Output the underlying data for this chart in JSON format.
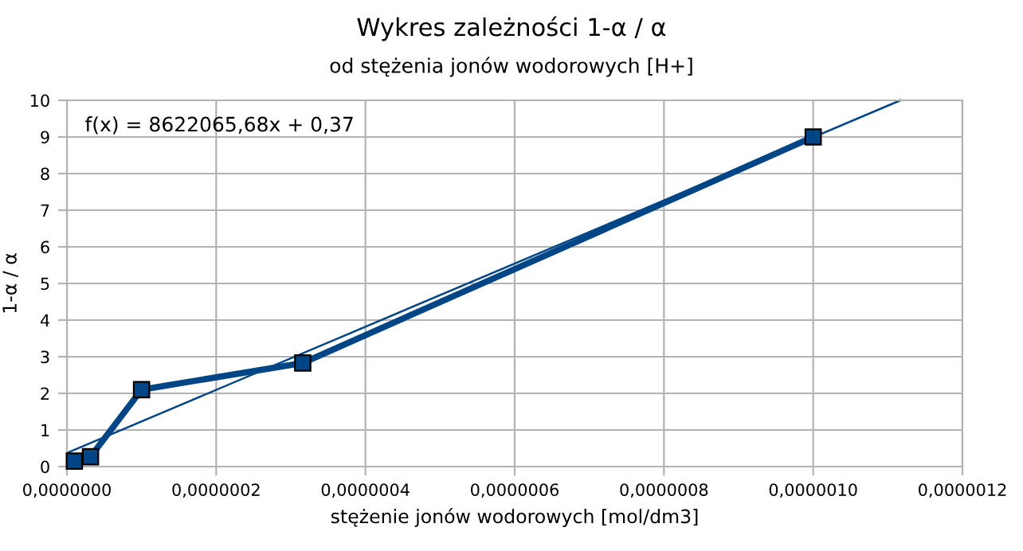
{
  "chart_data": {
    "type": "line",
    "title": "Wykres zależności 1-α / α",
    "subtitle": "od stężenia jonów wodorowych [H+]",
    "xlabel": "stężenie jonów wodorowych [mol/dm3]",
    "ylabel": "1-α / α",
    "series": [
      {
        "color": "#004586",
        "marker": "square",
        "x": [
          1e-08,
          3.16e-08,
          1e-07,
          3.16e-07,
          1e-06
        ],
        "values": [
          0.15,
          0.27,
          2.1,
          2.83,
          9.0
        ]
      },
      {
        "color": "#004586",
        "marker": "none",
        "x": [
          0,
          1.117e-06
        ],
        "values": [
          0.37,
          10.0
        ]
      }
    ],
    "xlim": [
      0,
      1.2e-06
    ],
    "ylim": [
      0,
      10
    ],
    "xticks": [
      {
        "value": 0,
        "label": "0,0000000"
      },
      {
        "value": 2e-07,
        "label": "0,0000002"
      },
      {
        "value": 4e-07,
        "label": "0,0000004"
      },
      {
        "value": 6e-07,
        "label": "0,0000006"
      },
      {
        "value": 8e-07,
        "label": "0,0000008"
      },
      {
        "value": 1e-06,
        "label": "0,0000010"
      },
      {
        "value": 1.2e-06,
        "label": "0,0000012"
      }
    ],
    "yticks": [
      0,
      1,
      2,
      3,
      4,
      5,
      6,
      7,
      8,
      9,
      10
    ],
    "grid": true,
    "line_style": "solid",
    "annotations": [
      "f(x) = 8622065,68x + 0,37"
    ]
  }
}
